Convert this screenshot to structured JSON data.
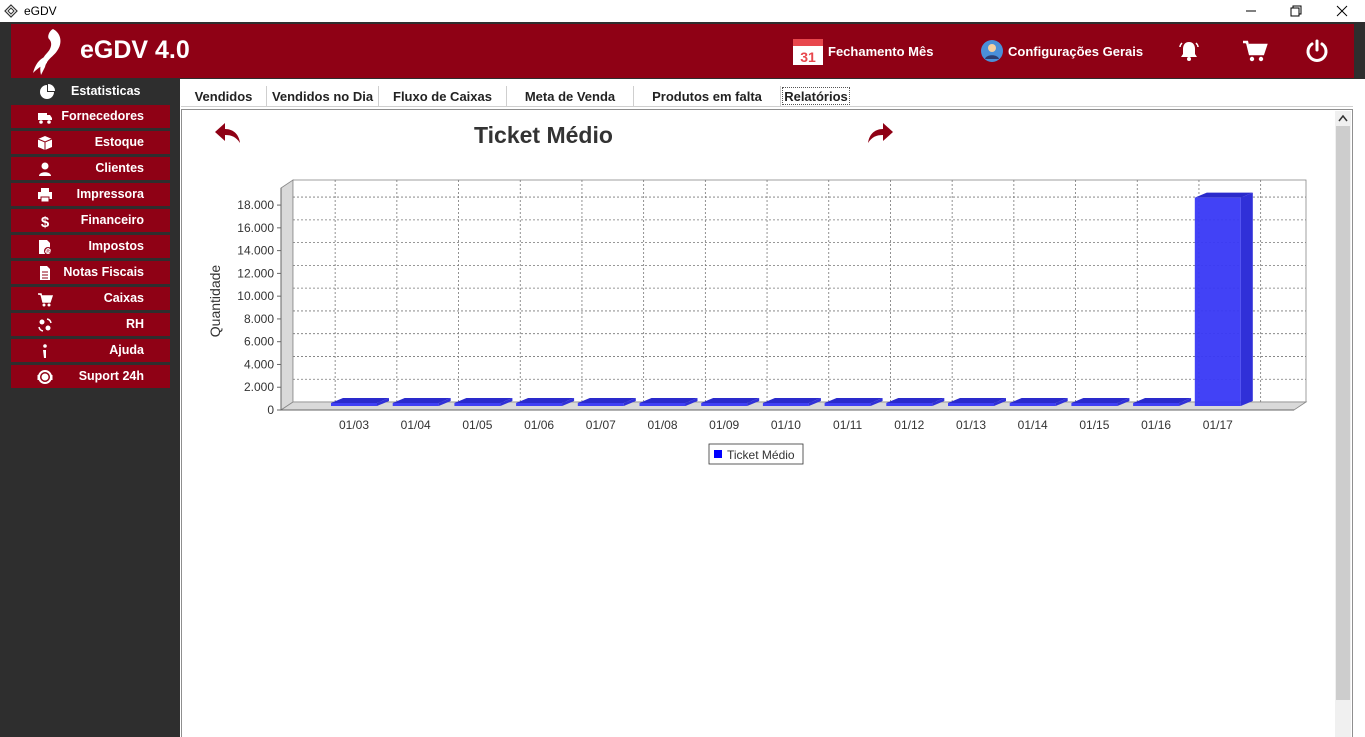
{
  "window": {
    "title": "eGDV"
  },
  "header": {
    "brand": "eGDV 4.0",
    "calendar_day": "31",
    "fechamento_label": "Fechamento Mês",
    "config_label": "Configurações Gerais"
  },
  "sidebar": {
    "top_label": "Estatisticas",
    "items": [
      {
        "label": "Fornecedores",
        "icon": "truck-icon"
      },
      {
        "label": "Estoque",
        "icon": "box-icon"
      },
      {
        "label": "Clientes",
        "icon": "person-icon"
      },
      {
        "label": "Impressora",
        "icon": "printer-icon"
      },
      {
        "label": "Financeiro",
        "icon": "dollar-icon"
      },
      {
        "label": "Impostos",
        "icon": "tax-document-icon"
      },
      {
        "label": "Notas Fiscais",
        "icon": "document-icon"
      },
      {
        "label": "Caixas",
        "icon": "cart-icon"
      },
      {
        "label": "RH",
        "icon": "people-exchange-icon"
      },
      {
        "label": "Ajuda",
        "icon": "info-icon"
      },
      {
        "label": "Suport 24h",
        "icon": "support-agent-icon"
      }
    ]
  },
  "tabs": [
    {
      "label": "Vendidos"
    },
    {
      "label": "Vendidos no Dia"
    },
    {
      "label": "Fluxo de Caixas"
    },
    {
      "label": "Meta de Venda"
    },
    {
      "label": "Produtos em falta"
    },
    {
      "label": "Relatórios"
    }
  ],
  "colors": {
    "brand_red": "#8f0115",
    "sidebar_dark": "#2e2e2e",
    "bar_blue": "#3838f5"
  },
  "chart_data": {
    "type": "bar",
    "title": "Ticket Médio",
    "xlabel": "",
    "ylabel": "Quantidade",
    "ylim": [
      0,
      19500
    ],
    "yticks": [
      0,
      2000,
      4000,
      6000,
      8000,
      10000,
      12000,
      14000,
      16000,
      18000
    ],
    "ytick_labels": [
      "0",
      "2.000",
      "4.000",
      "6.000",
      "8.000",
      "10.000",
      "12.000",
      "14.000",
      "16.000",
      "18.000"
    ],
    "categories": [
      "01/03",
      "01/04",
      "01/05",
      "01/06",
      "01/07",
      "01/08",
      "01/09",
      "01/10",
      "01/11",
      "01/12",
      "01/13",
      "01/14",
      "01/15",
      "01/16",
      "01/17"
    ],
    "series": [
      {
        "name": "Ticket Médio",
        "values": [
          0,
          0,
          0,
          0,
          0,
          0,
          0,
          0,
          0,
          0,
          0,
          0,
          0,
          0,
          18300
        ]
      }
    ],
    "grid": true,
    "legend": "bottom"
  }
}
